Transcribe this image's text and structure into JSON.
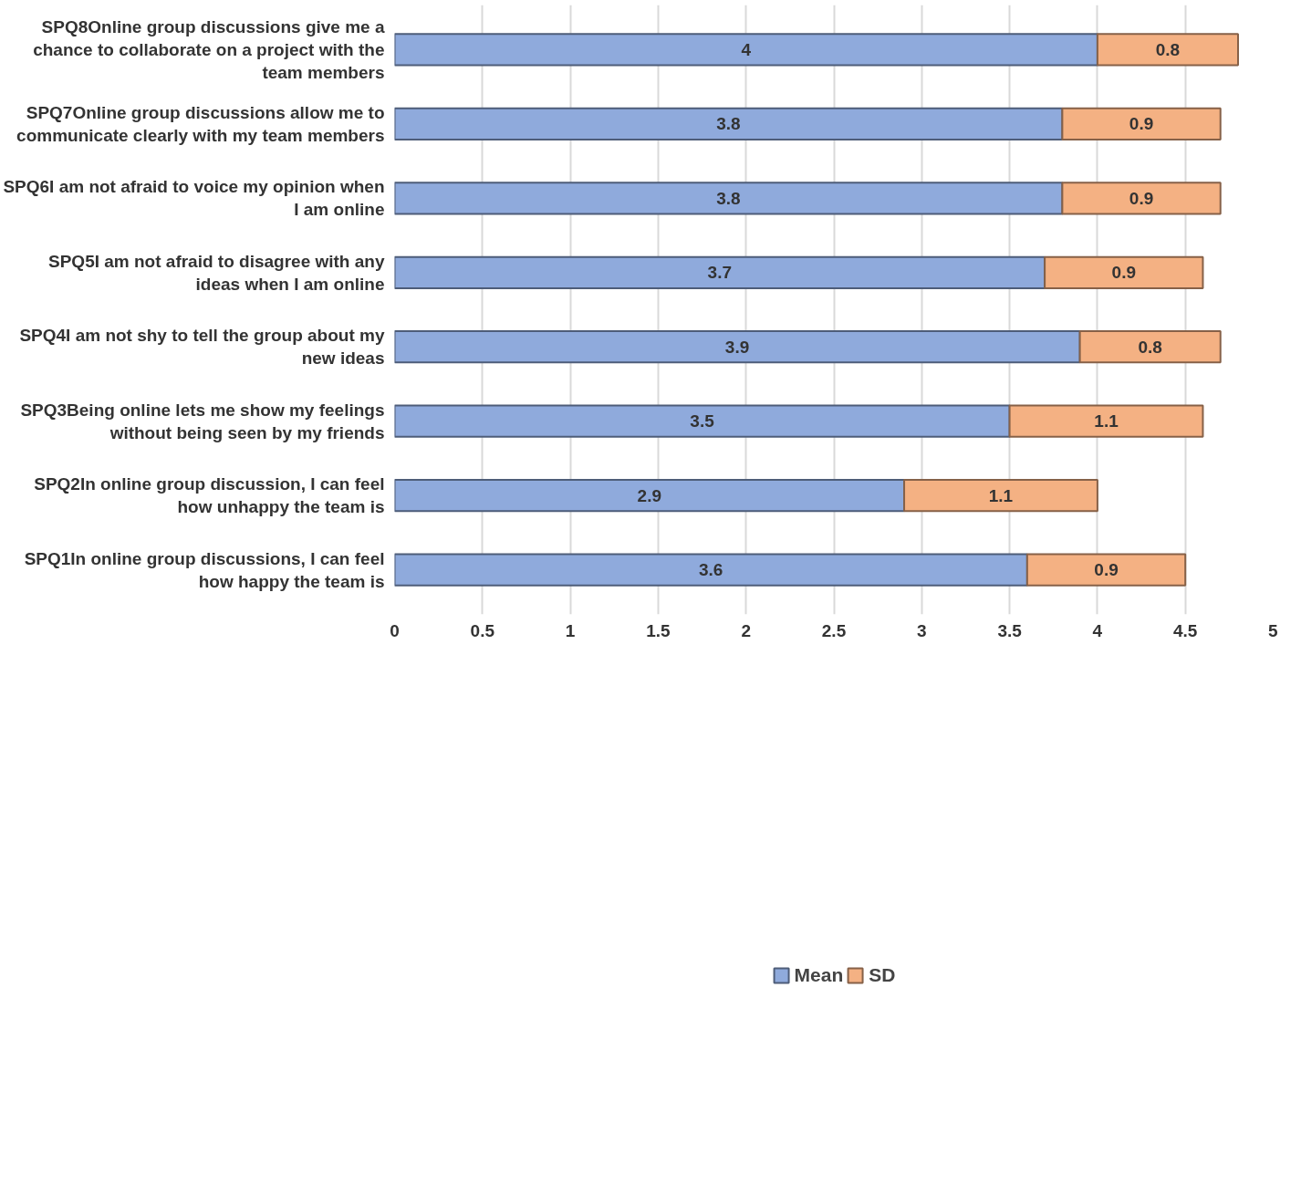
{
  "chart_data": {
    "type": "bar",
    "orientation": "horizontal",
    "stacked": true,
    "data_labels": true,
    "grid": "x",
    "legend": "bottom",
    "categories": [
      "SPQ8Online group discussions give me a chance to collaborate on a project with the team members",
      "SPQ7Online group discussions allow me to communicate clearly with my team members",
      "SPQ6I am not afraid to voice my opinion when I am online",
      "SPQ5I am not afraid to disagree with any ideas when I am online",
      "SPQ4I am not shy to tell the group about my new ideas",
      "SPQ3Being online lets me show my feelings without being seen by my friends",
      "SPQ2In online group discussion, I can feel how unhappy the team is",
      "SPQ1In online group discussions, I can feel how happy the team is"
    ],
    "series": [
      {
        "name": "Mean",
        "color": "#8faadc",
        "values": [
          4,
          3.8,
          3.8,
          3.7,
          3.9,
          3.5,
          2.9,
          3.6
        ]
      },
      {
        "name": "SD",
        "color": "#f4b183",
        "values": [
          0.8,
          0.9,
          0.9,
          0.9,
          0.8,
          1.1,
          1.1,
          0.9
        ]
      }
    ],
    "xlim": [
      0,
      5
    ],
    "xticks": [
      0,
      0.5,
      1,
      1.5,
      2,
      2.5,
      3,
      3.5,
      4,
      4.5,
      5
    ]
  }
}
